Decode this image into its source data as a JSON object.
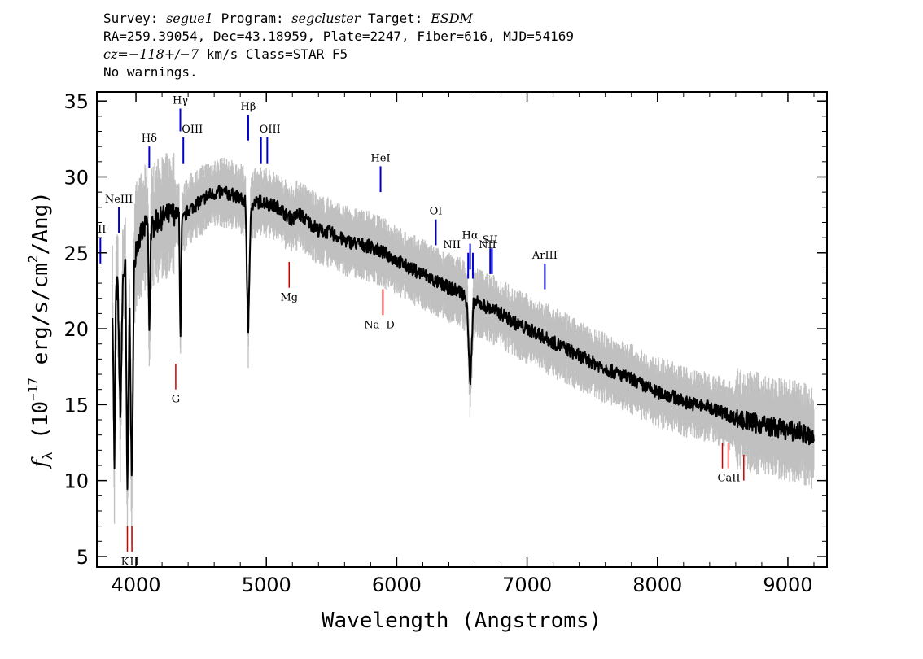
{
  "header": {
    "survey_label": "Survey:",
    "survey": "segue1",
    "program_label": "Program:",
    "program": "segcluster",
    "target_label": "Target:",
    "target": "ESDM",
    "line2": "RA=259.39054, Dec=43.18959, Plate=2247, Fiber=616, MJD=54169",
    "cz_prefix": "cz=",
    "cz_value": "−118+/−7",
    "cz_suffix": " km/s Class=STAR F5",
    "warnings": "No warnings."
  },
  "chart_data": {
    "type": "line",
    "xlabel": "Wavelength (Angstroms)",
    "ylabel_main": "f",
    "ylabel_sub": "λ",
    "ylabel_rest": " (10",
    "ylabel_exp": "−17",
    "ylabel_units": " erg/s/cm",
    "ylabel_sq": "2",
    "ylabel_end": "/Ang)",
    "xlim": [
      3700,
      9300
    ],
    "ylim": [
      4.3,
      35.6
    ],
    "xticks": [
      4000,
      5000,
      6000,
      7000,
      8000,
      9000
    ],
    "yticks": [
      5,
      10,
      15,
      20,
      25,
      30,
      35
    ],
    "colors": {
      "flux": "#000000",
      "error": "#c0c0c0",
      "emission": "#0000cc",
      "absorption": "#cc0000"
    },
    "series": [
      {
        "role": "flux",
        "x": [
          3820,
          3835,
          3845,
          3860,
          3880,
          3900,
          3920,
          3933,
          3950,
          3968,
          3985,
          4000,
          4030,
          4060,
          4090,
          4102,
          4115,
          4150,
          4200,
          4250,
          4300,
          4330,
          4341,
          4352,
          4400,
          4450,
          4500,
          4550,
          4600,
          4650,
          4700,
          4750,
          4800,
          4840,
          4861,
          4880,
          4920,
          4960,
          5000,
          5050,
          5100,
          5150,
          5200,
          5250,
          5300,
          5400,
          5500,
          5600,
          5700,
          5800,
          5900,
          6000,
          6100,
          6200,
          6300,
          6400,
          6500,
          6540,
          6563,
          6590,
          6650,
          6700,
          6800,
          6900,
          7000,
          7100,
          7200,
          7300,
          7400,
          7500,
          7600,
          7700,
          7800,
          7900,
          8000,
          8100,
          8200,
          8300,
          8400,
          8500,
          8600,
          8700,
          8800,
          8900,
          9000,
          9100,
          9200
        ],
        "y": [
          21.5,
          10.5,
          22.0,
          23.0,
          13.8,
          23.5,
          24.0,
          8.5,
          22.0,
          9.0,
          23.5,
          25.5,
          26.0,
          26.5,
          27.0,
          19.5,
          26.5,
          27.0,
          27.3,
          27.5,
          27.6,
          27.5,
          19.0,
          27.0,
          27.8,
          28.1,
          28.4,
          28.8,
          28.9,
          29.0,
          28.9,
          28.8,
          28.6,
          28.3,
          19.4,
          28.0,
          28.3,
          28.4,
          28.3,
          28.1,
          28.0,
          27.5,
          27.2,
          27.6,
          27.2,
          26.5,
          26.3,
          25.8,
          25.6,
          25.4,
          25.0,
          24.5,
          24.0,
          23.6,
          23.1,
          22.7,
          22.4,
          21.8,
          16.0,
          21.8,
          21.6,
          21.4,
          21.0,
          20.4,
          20.0,
          19.6,
          19.1,
          18.7,
          18.2,
          17.8,
          17.4,
          17.0,
          16.7,
          16.2,
          15.8,
          15.6,
          15.2,
          15.0,
          14.8,
          14.5,
          14.1,
          13.9,
          13.7,
          13.5,
          13.3,
          13.2,
          12.7
        ]
      }
    ],
    "emission_lines": [
      {
        "label": "II",
        "x": 3727,
        "y0": 24.3,
        "y1": 26.0
      },
      {
        "label": "NeIII",
        "x": 3869,
        "y0": 26.3,
        "y1": 28.0
      },
      {
        "label": "Hδ",
        "x": 4102,
        "y0": 30.6,
        "y1": 32.0
      },
      {
        "label": "Hγ",
        "x": 4340,
        "y0": 33.0,
        "y1": 34.5
      },
      {
        "label": "OIII",
        "x": 4363,
        "y0": 30.9,
        "y1": 32.6
      },
      {
        "label": "Hβ",
        "x": 4861,
        "y0": 32.4,
        "y1": 34.1
      },
      {
        "label": "OIII",
        "x": 4959,
        "y0": 30.9,
        "y1": 32.6
      },
      {
        "label": "OIII",
        "x": 5007,
        "y0": 30.9,
        "y1": 32.6
      },
      {
        "label": "HeI",
        "x": 5876,
        "y0": 29.0,
        "y1": 30.7
      },
      {
        "label": "OI",
        "x": 6300,
        "y0": 25.5,
        "y1": 27.2
      },
      {
        "label": "NII",
        "x": 6548,
        "y0": 23.3,
        "y1": 25.0
      },
      {
        "label": "Hα",
        "x": 6563,
        "y0": 23.9,
        "y1": 25.6
      },
      {
        "label": "NII",
        "x": 6584,
        "y0": 23.3,
        "y1": 25.0
      },
      {
        "label": "SII",
        "x": 6717,
        "y0": 23.6,
        "y1": 25.3
      },
      {
        "label": "SII",
        "x": 6731,
        "y0": 23.6,
        "y1": 25.3
      },
      {
        "label": "ArIII",
        "x": 7136,
        "y0": 22.6,
        "y1": 24.3
      }
    ],
    "absorption_lines": [
      {
        "label": "K",
        "x": 3934,
        "y0": 5.3,
        "y1": 7.0
      },
      {
        "label": "H",
        "x": 3969,
        "y0": 5.3,
        "y1": 7.0
      },
      {
        "label": "G",
        "x": 4305,
        "y0": 16.0,
        "y1": 17.7
      },
      {
        "label": "Mg",
        "x": 5175,
        "y0": 22.7,
        "y1": 24.4
      },
      {
        "label": "Na",
        "x": 5894,
        "y0": 20.9,
        "y1": 22.6
      },
      {
        "label": "D",
        "x": 5894,
        "y0": 20.9,
        "y1": 22.6
      },
      {
        "label": "CaII",
        "x": 8498,
        "y0": 10.8,
        "y1": 12.5
      },
      {
        "label": "CaII",
        "x": 8542,
        "y0": 10.8,
        "y1": 12.5
      },
      {
        "label": "CaII",
        "x": 8662,
        "y0": 10.0,
        "y1": 11.7
      }
    ]
  }
}
